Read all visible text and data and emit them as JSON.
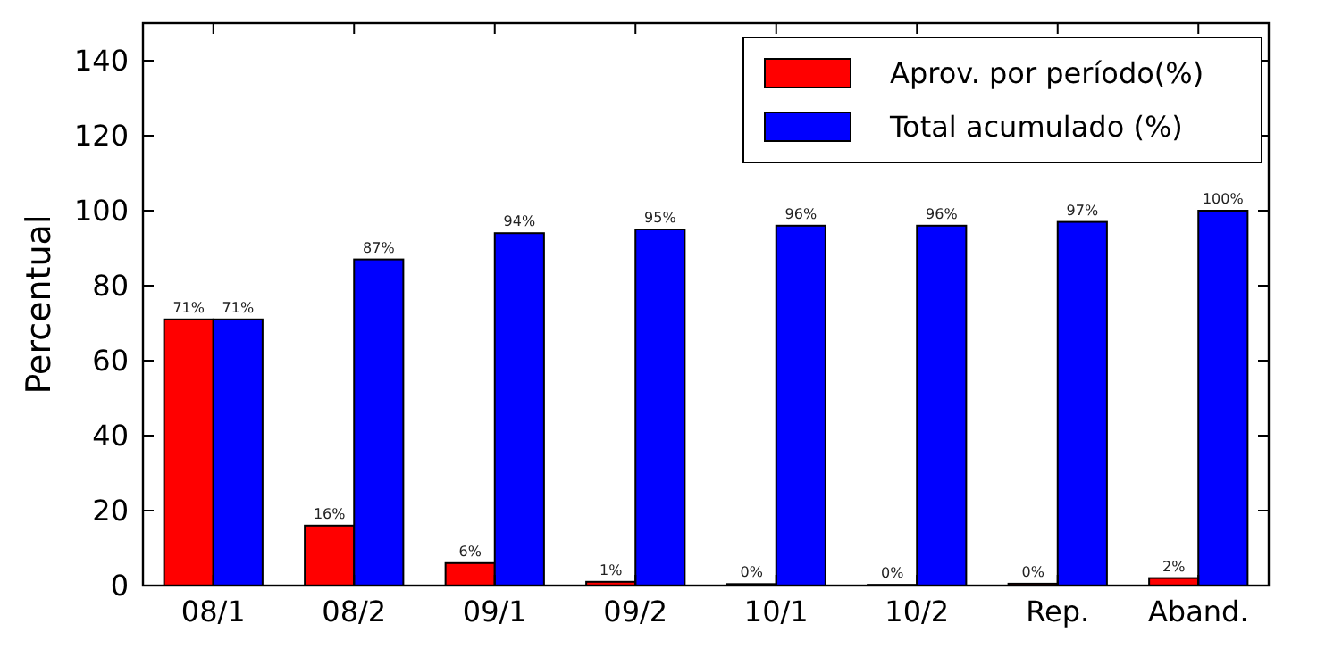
{
  "chart_data": {
    "type": "bar",
    "ylabel": "Percentual",
    "categories": [
      "08/1",
      "08/2",
      "09/1",
      "09/2",
      "10/1",
      "10/2",
      "Rep.",
      "Aband."
    ],
    "series": [
      {
        "name": "Aprov. por período(%)",
        "color": "#ff0000",
        "values": [
          71,
          16,
          6,
          1,
          0.4,
          0.2,
          0.5,
          2
        ],
        "value_labels": [
          "71%",
          "16%",
          "6%",
          "1%",
          "0%",
          "0%",
          "0%",
          "2%"
        ]
      },
      {
        "name": "Total acumulado (%)",
        "color": "#0000ff",
        "values": [
          71,
          87,
          94,
          95,
          96,
          96,
          97,
          100
        ],
        "value_labels": [
          "71%",
          "87%",
          "94%",
          "95%",
          "96%",
          "96%",
          "97%",
          "100%"
        ]
      }
    ],
    "ylim": [
      0,
      150
    ],
    "yticks": [
      0,
      20,
      40,
      60,
      80,
      100,
      120,
      140
    ],
    "legend": "top right",
    "grid": false
  }
}
